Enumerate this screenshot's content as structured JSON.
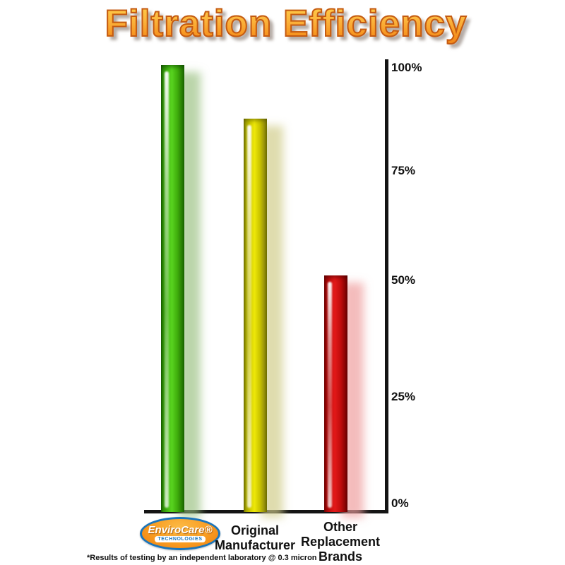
{
  "title": "Filtration Efficiency",
  "footnote": "*Results of testing by an independent laboratory @ 0.3 micron",
  "logo": {
    "brand": "EnviroCare®",
    "sub": "TECHNOLOGIES"
  },
  "category_labels": {
    "original": [
      "Original",
      "Manufacturer"
    ],
    "other": [
      "Other",
      "Replacement",
      "Brands"
    ]
  },
  "chart_data": {
    "type": "bar",
    "title": "Filtration Efficiency",
    "categories": [
      "EnviroCare Technologies",
      "Original Manufacturer",
      "Other Replacement Brands"
    ],
    "values": [
      100,
      88,
      53
    ],
    "unit": "%",
    "ylabel": "",
    "xlabel": "",
    "ylim": [
      0,
      100
    ],
    "yticks": [
      100,
      75,
      50,
      25,
      0
    ],
    "ytick_labels": [
      "100%",
      "75%",
      "50%",
      "25%",
      "0%"
    ],
    "bar_colors": [
      "#46bc12",
      "#e3da08",
      "#d41414"
    ],
    "axis_color": "#141414",
    "title_color": "#f6921e",
    "title_outline_color": "#c45a12",
    "legend": "none",
    "grid": false,
    "yaxis_side": "right"
  }
}
